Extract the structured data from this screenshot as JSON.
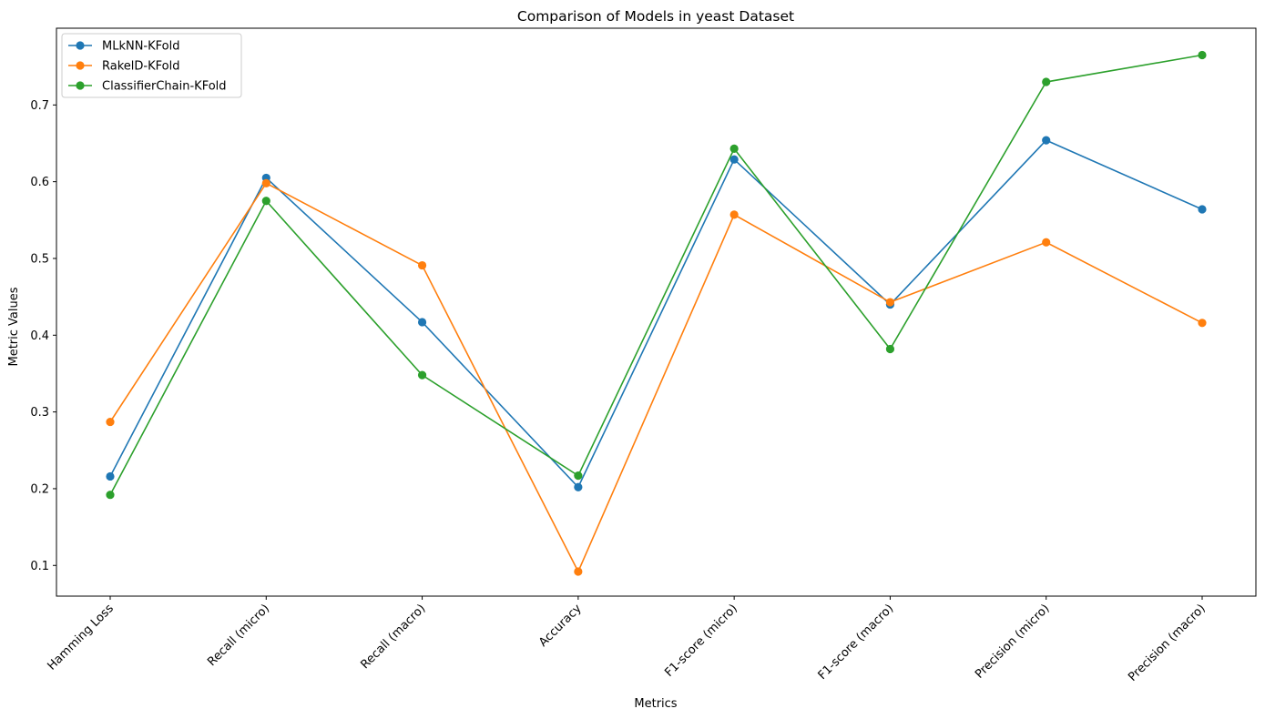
{
  "chart_data": {
    "type": "line",
    "title": "Comparison of Models in yeast Dataset",
    "xlabel": "Metrics",
    "ylabel": "Metric Values",
    "categories": [
      "Hamming Loss",
      "Recall (micro)",
      "Recall (macro)",
      "Accuracy",
      "F1-score (micro)",
      "F1-score (macro)",
      "Precision (micro)",
      "Precision (macro)"
    ],
    "ylim": [
      0.06,
      0.8
    ],
    "yticks": [
      0.1,
      0.2,
      0.3,
      0.4,
      0.5,
      0.6,
      0.7
    ],
    "grid": false,
    "legend_position": "top-left",
    "series": [
      {
        "name": "MLkNN-KFold",
        "color": "#1f77b4",
        "values": [
          0.216,
          0.605,
          0.417,
          0.202,
          0.629,
          0.44,
          0.654,
          0.564
        ]
      },
      {
        "name": "RakelD-KFold",
        "color": "#ff7f0e",
        "values": [
          0.287,
          0.598,
          0.491,
          0.092,
          0.557,
          0.443,
          0.521,
          0.416
        ]
      },
      {
        "name": "ClassifierChain-KFold",
        "color": "#2ca02c",
        "values": [
          0.192,
          0.575,
          0.348,
          0.217,
          0.643,
          0.382,
          0.73,
          0.765
        ]
      }
    ]
  }
}
